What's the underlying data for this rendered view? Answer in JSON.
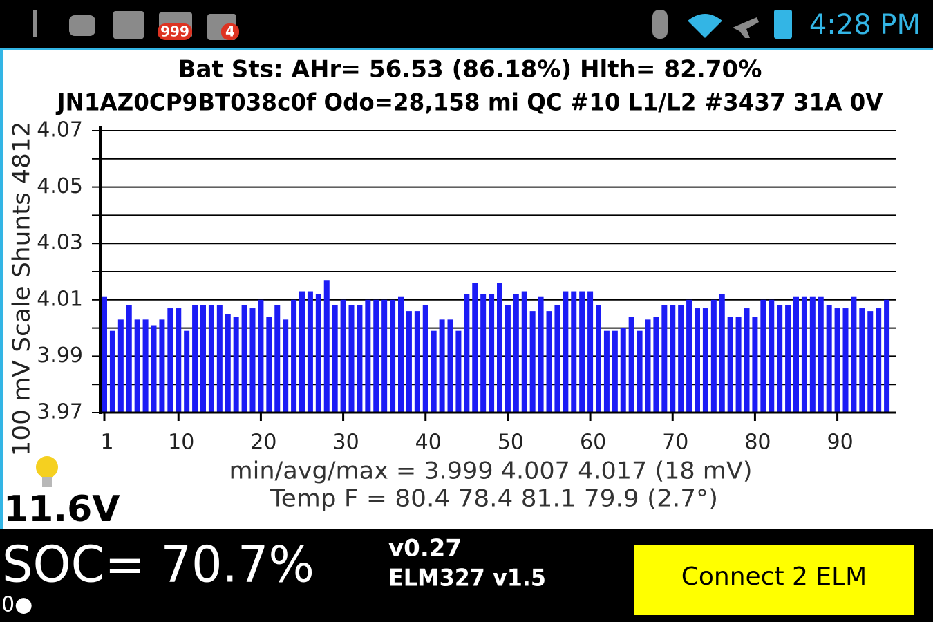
{
  "status_bar": {
    "badges": [
      "999",
      "4"
    ],
    "time": "4:28 PM"
  },
  "chart_data": {
    "type": "bar",
    "title": "Bat Sts:  AHr= 56.53 (86.18%) Hlth= 82.70%",
    "subtitle": "JN1AZ0CP9BT038c0f Odo=28,158 mi  QC #10  L1/L2 #3437 31A 0V",
    "ylabel": "100 mV Scale  Shunts 4812",
    "categories": [
      1,
      null,
      null,
      null,
      null,
      null,
      null,
      null,
      null,
      10,
      null,
      null,
      null,
      null,
      null,
      null,
      null,
      null,
      null,
      20,
      null,
      null,
      null,
      null,
      null,
      null,
      null,
      null,
      null,
      30,
      null,
      null,
      null,
      null,
      null,
      null,
      null,
      null,
      null,
      40,
      null,
      null,
      null,
      null,
      null,
      null,
      null,
      null,
      null,
      50,
      null,
      null,
      null,
      null,
      null,
      null,
      null,
      null,
      null,
      60,
      null,
      null,
      null,
      null,
      null,
      null,
      null,
      null,
      null,
      70,
      null,
      null,
      null,
      null,
      null,
      null,
      null,
      null,
      null,
      80,
      null,
      null,
      null,
      null,
      null,
      null,
      null,
      null,
      null,
      90,
      null,
      null,
      null,
      null,
      null,
      null
    ],
    "values": [
      4.011,
      3.999,
      4.003,
      4.008,
      4.003,
      4.003,
      4.001,
      4.003,
      4.007,
      4.007,
      3.999,
      4.008,
      4.008,
      4.008,
      4.008,
      4.005,
      4.004,
      4.008,
      4.007,
      4.01,
      4.004,
      4.008,
      4.003,
      4.01,
      4.013,
      4.013,
      4.012,
      4.017,
      4.008,
      4.01,
      4.008,
      4.008,
      4.01,
      4.01,
      4.01,
      4.01,
      4.011,
      4.006,
      4.006,
      4.008,
      3.999,
      4.003,
      4.003,
      3.999,
      4.012,
      4.016,
      4.012,
      4.012,
      4.016,
      4.008,
      4.012,
      4.013,
      4.006,
      4.011,
      4.006,
      4.008,
      4.013,
      4.013,
      4.013,
      4.013,
      4.008,
      3.999,
      3.999,
      4.0,
      4.004,
      3.999,
      4.003,
      4.004,
      4.008,
      4.008,
      4.008,
      4.01,
      4.007,
      4.007,
      4.01,
      4.012,
      4.004,
      4.004,
      4.007,
      4.004,
      4.01,
      4.01,
      4.008,
      4.008,
      4.011,
      4.011,
      4.011,
      4.011,
      4.008,
      4.007,
      4.007,
      4.011,
      4.007,
      4.006,
      4.007,
      4.01
    ],
    "color": "#1c1cf5",
    "ylim": [
      3.97,
      4.07
    ],
    "yticks": [
      3.97,
      3.99,
      4.01,
      4.03,
      4.05,
      4.07
    ],
    "minor_yticks": [
      3.98,
      4.0,
      4.02,
      4.04,
      4.06
    ],
    "grid": true,
    "annotations": [
      "min/avg/max = 3.999 4.007 4.017  (18 mV)",
      "Temp F = 80.4  78.4  81.1  79.9  (2.7°)"
    ]
  },
  "pack_voltage": "11.6V",
  "footer": {
    "soc": "SOC= 70.7%",
    "indicator": "0●",
    "version": "v0.27",
    "adapter": "ELM327 v1.5",
    "button": "Connect 2 ELM"
  }
}
